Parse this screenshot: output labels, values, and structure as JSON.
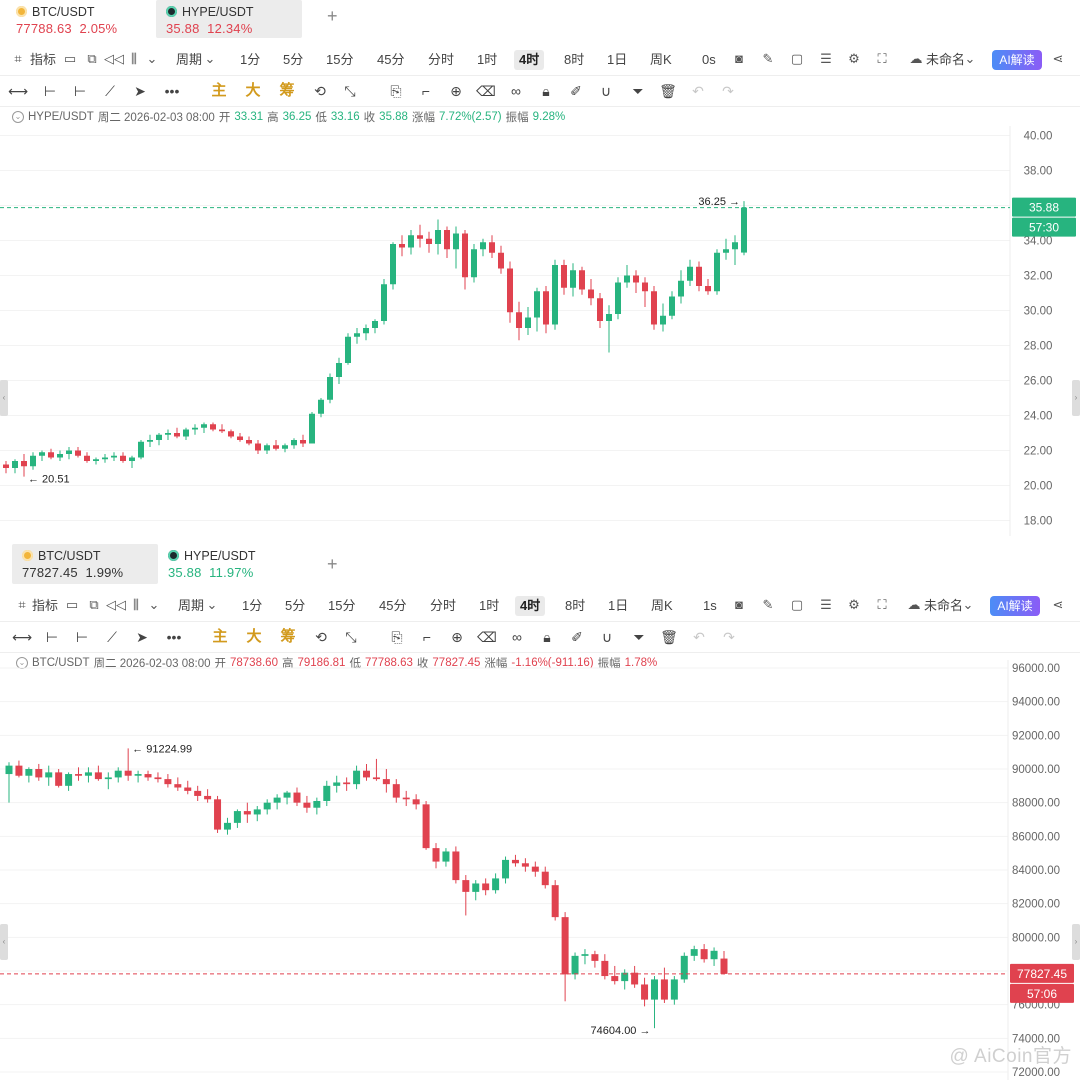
{
  "colors": {
    "up": "#27b47f",
    "down": "#e0424f",
    "accent": "#5a8dee"
  },
  "top": {
    "tabs": [
      {
        "name": "BTC/USDT",
        "price": "77788.63",
        "change": "2.05%",
        "active": false,
        "coin": "btc",
        "color": "#e0424f"
      },
      {
        "name": "HYPE/USDT",
        "price": "35.88",
        "change": "12.34%",
        "active": true,
        "coin": "hype",
        "color": "#e0424f"
      }
    ],
    "info": {
      "symbol": "HYPE/USDT",
      "datetime": "周二 2026-02-03 08:00",
      "open_label": "开",
      "open": "33.31",
      "high_label": "高",
      "high": "36.25",
      "low_label": "低",
      "low": "33.16",
      "close_label": "收",
      "close": "35.88",
      "chg_label": "涨幅",
      "chg": "7.72%(2.57)",
      "amp_label": "振幅",
      "amp": "9.28%"
    },
    "price_tag": "35.88",
    "countdown": "57:30",
    "tb_countdown": "0s",
    "hi_label": "36.25",
    "lo_label": "20.51"
  },
  "bottom": {
    "tabs": [
      {
        "name": "BTC/USDT",
        "price": "77827.45",
        "change": "1.99%",
        "active": true,
        "coin": "btc",
        "color": "#333333"
      },
      {
        "name": "HYPE/USDT",
        "price": "35.88",
        "change": "11.97%",
        "active": false,
        "coin": "hype",
        "color": "#27b47f"
      }
    ],
    "info": {
      "symbol": "BTC/USDT",
      "datetime": "周二 2026-02-03 08:00",
      "open_label": "开",
      "open": "78738.60",
      "high_label": "高",
      "high": "79186.81",
      "low_label": "低",
      "low": "77788.63",
      "close_label": "收",
      "close": "77827.45",
      "chg_label": "涨幅",
      "chg": "-1.16%(-911.16)",
      "amp_label": "振幅",
      "amp": "1.78%"
    },
    "price_tag": "77827.45",
    "countdown": "57:06",
    "tb_countdown": "1s",
    "hi_label": "91224.99",
    "lo_label": "74604.00"
  },
  "toolbar": {
    "indicator": "指标",
    "period": "周期",
    "periods": [
      "1分",
      "5分",
      "15分",
      "45分",
      "分时",
      "1时",
      "4时",
      "8时",
      "1日",
      "周K"
    ],
    "active_period": "4时",
    "layout_name": "未命名",
    "ai": "AI解读",
    "draw_main": "主",
    "draw_big": "大",
    "draw_chip": "筹"
  },
  "watermark": "@ AiCoin官方",
  "chart_data": [
    {
      "type": "candlestick",
      "symbol": "HYPE/USDT",
      "interval": "4时",
      "ylim": [
        18,
        40
      ],
      "yticks": [
        18,
        20,
        22,
        24,
        26,
        28,
        30,
        32,
        34,
        36,
        38,
        40
      ],
      "last_price": 35.88,
      "marked_high": 36.25,
      "marked_low": 20.51,
      "ohlc": [
        [
          21.2,
          21.4,
          20.7,
          21.0
        ],
        [
          21.0,
          21.5,
          20.7,
          21.4
        ],
        [
          21.4,
          21.8,
          20.51,
          21.1
        ],
        [
          21.1,
          21.9,
          20.9,
          21.7
        ],
        [
          21.7,
          22.0,
          21.4,
          21.9
        ],
        [
          21.9,
          22.1,
          21.5,
          21.6
        ],
        [
          21.6,
          22.0,
          21.4,
          21.8
        ],
        [
          21.8,
          22.2,
          21.5,
          22.0
        ],
        [
          22.0,
          22.2,
          21.6,
          21.7
        ],
        [
          21.7,
          21.9,
          21.3,
          21.4
        ],
        [
          21.4,
          21.6,
          21.2,
          21.5
        ],
        [
          21.5,
          21.8,
          21.3,
          21.6
        ],
        [
          21.6,
          21.9,
          21.4,
          21.7
        ],
        [
          21.7,
          21.9,
          21.3,
          21.4
        ],
        [
          21.4,
          21.7,
          21.0,
          21.6
        ],
        [
          21.6,
          22.6,
          21.5,
          22.5
        ],
        [
          22.5,
          22.9,
          22.2,
          22.6
        ],
        [
          22.6,
          23.0,
          22.3,
          22.9
        ],
        [
          22.9,
          23.2,
          22.6,
          23.0
        ],
        [
          23.0,
          23.3,
          22.7,
          22.8
        ],
        [
          22.8,
          23.3,
          22.6,
          23.2
        ],
        [
          23.2,
          23.5,
          22.9,
          23.3
        ],
        [
          23.3,
          23.6,
          23.0,
          23.5
        ],
        [
          23.5,
          23.6,
          23.1,
          23.2
        ],
        [
          23.2,
          23.5,
          23.0,
          23.1
        ],
        [
          23.1,
          23.2,
          22.7,
          22.8
        ],
        [
          22.8,
          23.0,
          22.5,
          22.6
        ],
        [
          22.6,
          22.8,
          22.3,
          22.4
        ],
        [
          22.4,
          22.6,
          21.8,
          22.0
        ],
        [
          22.0,
          22.4,
          21.8,
          22.3
        ],
        [
          22.3,
          22.6,
          22.0,
          22.1
        ],
        [
          22.1,
          22.4,
          21.9,
          22.3
        ],
        [
          22.3,
          22.7,
          22.1,
          22.6
        ],
        [
          22.6,
          22.9,
          22.2,
          22.4
        ],
        [
          22.4,
          24.2,
          22.4,
          24.1
        ],
        [
          24.1,
          25.0,
          23.9,
          24.9
        ],
        [
          24.9,
          26.4,
          24.7,
          26.2
        ],
        [
          26.2,
          27.3,
          25.8,
          27.0
        ],
        [
          27.0,
          28.7,
          26.9,
          28.5
        ],
        [
          28.5,
          29.0,
          28.1,
          28.7
        ],
        [
          28.7,
          29.2,
          28.3,
          29.0
        ],
        [
          29.0,
          29.5,
          28.7,
          29.4
        ],
        [
          29.4,
          31.8,
          29.2,
          31.5
        ],
        [
          31.5,
          33.9,
          31.2,
          33.8
        ],
        [
          33.8,
          34.3,
          33.1,
          33.6
        ],
        [
          33.6,
          34.6,
          33.2,
          34.3
        ],
        [
          34.3,
          34.9,
          33.6,
          34.1
        ],
        [
          34.1,
          34.5,
          33.3,
          33.8
        ],
        [
          33.8,
          35.2,
          33.2,
          34.6
        ],
        [
          34.6,
          34.8,
          33.0,
          33.5
        ],
        [
          33.5,
          34.8,
          32.4,
          34.4
        ],
        [
          34.4,
          34.6,
          31.2,
          31.9
        ],
        [
          31.9,
          33.8,
          31.6,
          33.5
        ],
        [
          33.5,
          34.1,
          33.1,
          33.9
        ],
        [
          33.9,
          34.3,
          33.0,
          33.3
        ],
        [
          33.3,
          33.7,
          32.1,
          32.4
        ],
        [
          32.4,
          32.8,
          29.3,
          29.9
        ],
        [
          29.9,
          30.5,
          28.3,
          29.0
        ],
        [
          29.0,
          30.2,
          28.6,
          29.6
        ],
        [
          29.6,
          31.3,
          28.8,
          31.1
        ],
        [
          31.1,
          31.4,
          28.7,
          29.2
        ],
        [
          29.2,
          32.9,
          28.9,
          32.6
        ],
        [
          32.6,
          32.9,
          30.9,
          31.3
        ],
        [
          31.3,
          32.7,
          30.8,
          32.3
        ],
        [
          32.3,
          32.5,
          30.9,
          31.2
        ],
        [
          31.2,
          31.8,
          30.3,
          30.7
        ],
        [
          30.7,
          31.0,
          29.0,
          29.4
        ],
        [
          29.4,
          30.3,
          27.6,
          29.8
        ],
        [
          29.8,
          31.9,
          29.5,
          31.6
        ],
        [
          31.6,
          32.6,
          31.3,
          32.0
        ],
        [
          32.0,
          32.3,
          31.0,
          31.6
        ],
        [
          31.6,
          31.9,
          30.2,
          31.1
        ],
        [
          31.1,
          31.4,
          28.9,
          29.2
        ],
        [
          29.2,
          30.4,
          28.8,
          29.7
        ],
        [
          29.7,
          31.1,
          29.5,
          30.8
        ],
        [
          30.8,
          32.3,
          30.4,
          31.7
        ],
        [
          31.7,
          32.9,
          31.4,
          32.5
        ],
        [
          32.5,
          32.8,
          31.1,
          31.4
        ],
        [
          31.4,
          31.8,
          30.9,
          31.1
        ],
        [
          31.1,
          33.5,
          30.9,
          33.3
        ],
        [
          33.3,
          34.1,
          32.9,
          33.5
        ],
        [
          33.5,
          34.3,
          32.6,
          33.9
        ],
        [
          33.31,
          36.25,
          33.16,
          35.88
        ]
      ]
    },
    {
      "type": "candlestick",
      "symbol": "BTC/USDT",
      "interval": "4时",
      "ylim": [
        72000,
        96000
      ],
      "yticks": [
        72000,
        74000,
        76000,
        78000,
        80000,
        82000,
        84000,
        86000,
        88000,
        90000,
        92000,
        94000,
        96000
      ],
      "last_price": 77827.45,
      "marked_high": 91224.99,
      "marked_low": 74604.0,
      "ohlc": [
        [
          89700,
          90400,
          88000,
          90200
        ],
        [
          90200,
          90500,
          89500,
          89600
        ],
        [
          89600,
          90100,
          89200,
          90000
        ],
        [
          90000,
          90300,
          89300,
          89500
        ],
        [
          89500,
          90200,
          89000,
          89800
        ],
        [
          89800,
          90000,
          88900,
          89000
        ],
        [
          89000,
          89800,
          88700,
          89700
        ],
        [
          89700,
          90100,
          89300,
          89600
        ],
        [
          89600,
          90100,
          89200,
          89800
        ],
        [
          89800,
          90200,
          89300,
          89400
        ],
        [
          89400,
          89800,
          88800,
          89500
        ],
        [
          89500,
          90100,
          89200,
          89900
        ],
        [
          89900,
          91225,
          89300,
          89600
        ],
        [
          89600,
          89900,
          89200,
          89700
        ],
        [
          89700,
          89900,
          89300,
          89500
        ],
        [
          89500,
          89800,
          89200,
          89400
        ],
        [
          89400,
          89700,
          88900,
          89100
        ],
        [
          89100,
          89500,
          88700,
          88900
        ],
        [
          88900,
          89300,
          88500,
          88700
        ],
        [
          88700,
          89000,
          88100,
          88400
        ],
        [
          88400,
          88800,
          88000,
          88200
        ],
        [
          88200,
          88400,
          86200,
          86400
        ],
        [
          86400,
          87100,
          86100,
          86800
        ],
        [
          86800,
          87600,
          86500,
          87500
        ],
        [
          87500,
          88000,
          86800,
          87300
        ],
        [
          87300,
          87800,
          86900,
          87600
        ],
        [
          87600,
          88200,
          87300,
          88000
        ],
        [
          88000,
          88500,
          87600,
          88300
        ],
        [
          88300,
          88700,
          87900,
          88600
        ],
        [
          88600,
          88900,
          87800,
          88000
        ],
        [
          88000,
          88400,
          87400,
          87700
        ],
        [
          87700,
          88300,
          87300,
          88100
        ],
        [
          88100,
          89300,
          87800,
          89000
        ],
        [
          89000,
          89600,
          88600,
          89200
        ],
        [
          89200,
          89500,
          88700,
          89100
        ],
        [
          89100,
          90200,
          88800,
          89900
        ],
        [
          89900,
          90300,
          89300,
          89500
        ],
        [
          89500,
          90600,
          89300,
          89400
        ],
        [
          89400,
          90000,
          88600,
          89100
        ],
        [
          89100,
          89400,
          88000,
          88300
        ],
        [
          88300,
          88700,
          87800,
          88200
        ],
        [
          88200,
          88500,
          87600,
          87900
        ],
        [
          87900,
          88100,
          85200,
          85300
        ],
        [
          85300,
          85600,
          84100,
          84500
        ],
        [
          84500,
          85300,
          84200,
          85100
        ],
        [
          85100,
          85400,
          83200,
          83400
        ],
        [
          83400,
          83700,
          81300,
          82700
        ],
        [
          82700,
          83400,
          82200,
          83200
        ],
        [
          83200,
          83500,
          82500,
          82800
        ],
        [
          82800,
          83800,
          82600,
          83500
        ],
        [
          83500,
          84800,
          83200,
          84600
        ],
        [
          84600,
          84900,
          84200,
          84400
        ],
        [
          84400,
          84700,
          83900,
          84200
        ],
        [
          84200,
          84500,
          83600,
          83900
        ],
        [
          83900,
          84200,
          82900,
          83100
        ],
        [
          83100,
          83400,
          81000,
          81200
        ],
        [
          81200,
          81500,
          76200,
          77800
        ],
        [
          77800,
          79100,
          77500,
          78900
        ],
        [
          78900,
          79300,
          78400,
          79000
        ],
        [
          79000,
          79200,
          78200,
          78600
        ],
        [
          78600,
          79000,
          77500,
          77700
        ],
        [
          77700,
          78300,
          77200,
          77400
        ],
        [
          77400,
          78100,
          76900,
          77900
        ],
        [
          77900,
          78300,
          77000,
          77200
        ],
        [
          77200,
          77600,
          75900,
          76300
        ],
        [
          76300,
          77700,
          74604,
          77500
        ],
        [
          77500,
          78200,
          76100,
          76300
        ],
        [
          76300,
          77700,
          76000,
          77500
        ],
        [
          77500,
          79100,
          77300,
          78900
        ],
        [
          78900,
          79500,
          78600,
          79300
        ],
        [
          79300,
          79600,
          78500,
          78700
        ],
        [
          78700,
          79400,
          78300,
          79200
        ],
        [
          78738.6,
          79186.81,
          77788.63,
          77827.45
        ]
      ]
    }
  ]
}
